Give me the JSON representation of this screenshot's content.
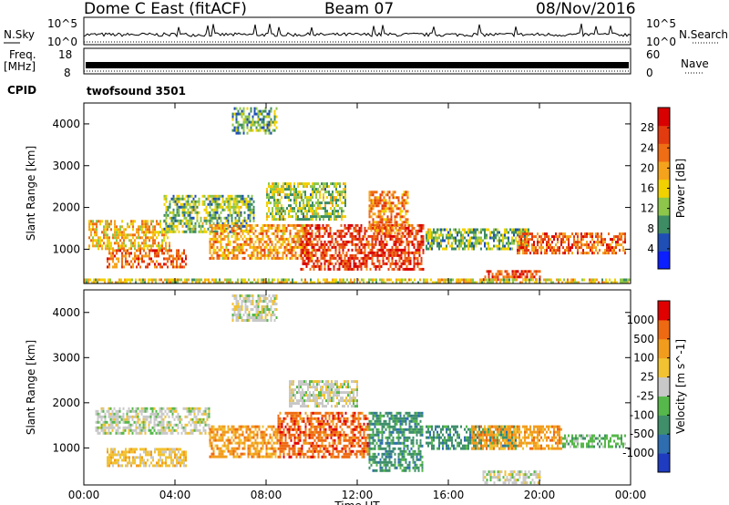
{
  "header": {
    "title": "Dome C East (fitACF)",
    "beam": "Beam 07",
    "date": "08/Nov/2016"
  },
  "strips": {
    "nsky_label": "N.Sky",
    "nsky_ticks": [
      "10^5",
      "10^0"
    ],
    "nsearch_label": "N.Search",
    "nsearch_ticks": [
      "10^5",
      "10^0"
    ],
    "freq_label": "Freq.",
    "freq_unit": "[MHz]",
    "freq_ticks": [
      "18",
      "8"
    ],
    "nave_label": "Nave",
    "nave_ticks": [
      "60",
      "0"
    ],
    "cpid_label": "CPID",
    "cpid_value": "twofsound 3501"
  },
  "chart_data": [
    {
      "type": "heatmap",
      "title": "",
      "xlabel": "Time UT",
      "ylabel": "Slant Range [km]",
      "xlim": [
        0,
        24
      ],
      "ylim": [
        180,
        4500
      ],
      "x_ticks": [
        "00:00",
        "04:00",
        "08:00",
        "12:00",
        "16:00",
        "20:00",
        "00:00"
      ],
      "y_ticks": [
        "1000",
        "2000",
        "3000",
        "4000"
      ],
      "colorbar_label": "Power [dB]",
      "colorbar_ticks": [
        "4",
        "8",
        "12",
        "16",
        "20",
        "24",
        "28"
      ],
      "colorbar_range": [
        0,
        32
      ],
      "colors": [
        "#0b1fff",
        "#1f4fb5",
        "#3d8c63",
        "#8dc64a",
        "#f1d100",
        "#f5a31d",
        "#ef6d14",
        "#e33b10",
        "#d80000"
      ],
      "regions": [
        {
          "t0": 0.2,
          "t1": 3.8,
          "r0": 1000,
          "r1": 1700,
          "value": 18
        },
        {
          "t0": 1.0,
          "t1": 4.5,
          "r0": 600,
          "r1": 1000,
          "value": 24
        },
        {
          "t0": 3.5,
          "t1": 7.5,
          "r0": 1400,
          "r1": 2300,
          "value": 12
        },
        {
          "t0": 5.5,
          "t1": 10.0,
          "r0": 800,
          "r1": 1600,
          "value": 20
        },
        {
          "t0": 8.0,
          "t1": 11.5,
          "r0": 1700,
          "r1": 2600,
          "value": 13
        },
        {
          "t0": 9.5,
          "t1": 14.9,
          "r0": 500,
          "r1": 1600,
          "value": 27
        },
        {
          "t0": 12.5,
          "t1": 14.2,
          "r0": 1400,
          "r1": 2400,
          "value": 22
        },
        {
          "t0": 15.0,
          "t1": 19.5,
          "r0": 1000,
          "r1": 1500,
          "value": 12
        },
        {
          "t0": 19.0,
          "t1": 23.8,
          "r0": 900,
          "r1": 1400,
          "value": 24
        },
        {
          "t0": 17.5,
          "t1": 20.0,
          "r0": 250,
          "r1": 500,
          "value": 26
        },
        {
          "t0": 6.5,
          "t1": 8.5,
          "r0": 3800,
          "r1": 4400,
          "value": 10
        },
        {
          "t0": 0.0,
          "t1": 24.0,
          "r0": 180,
          "r1": 300,
          "value": 16
        }
      ]
    },
    {
      "type": "heatmap",
      "title": "",
      "xlabel": "Time UT",
      "ylabel": "Slant Range [km]",
      "xlim": [
        0,
        24
      ],
      "ylim": [
        180,
        4500
      ],
      "x_ticks": [
        "00:00",
        "04:00",
        "08:00",
        "12:00",
        "16:00",
        "20:00",
        "00:00"
      ],
      "y_ticks": [
        "1000",
        "2000",
        "3000",
        "4000"
      ],
      "colorbar_label": "Velocity [m s^-1]",
      "colorbar_ticks": [
        "1000",
        "500",
        "100",
        "25",
        "-25",
        "-100",
        "-500",
        "-1000"
      ],
      "colors": [
        "#1f3bc0",
        "#2e6eb0",
        "#3e8f6a",
        "#56b84a",
        "#c8c8c8",
        "#f1c232",
        "#f29c1e",
        "#ee6a12",
        "#e00000"
      ],
      "regions": [
        {
          "t0": 0.5,
          "t1": 5.5,
          "r0": 1300,
          "r1": 1900,
          "level": 4
        },
        {
          "t0": 1.0,
          "t1": 4.5,
          "r0": 600,
          "r1": 1000,
          "level": 5
        },
        {
          "t0": 5.5,
          "t1": 8.5,
          "r0": 800,
          "r1": 1500,
          "level": 6
        },
        {
          "t0": 8.5,
          "t1": 12.5,
          "r0": 800,
          "r1": 1800,
          "level": 7
        },
        {
          "t0": 12.5,
          "t1": 14.9,
          "r0": 500,
          "r1": 1800,
          "level": 2
        },
        {
          "t0": 15.0,
          "t1": 19.0,
          "r0": 1000,
          "r1": 1500,
          "level": 2
        },
        {
          "t0": 17.0,
          "t1": 21.0,
          "r0": 1000,
          "r1": 1500,
          "level": 6
        },
        {
          "t0": 21.0,
          "t1": 23.8,
          "r0": 1000,
          "r1": 1300,
          "level": 3
        },
        {
          "t0": 9.0,
          "t1": 12.0,
          "r0": 1900,
          "r1": 2500,
          "level": 4
        },
        {
          "t0": 6.5,
          "t1": 8.5,
          "r0": 3800,
          "r1": 4400,
          "level": 4
        },
        {
          "t0": 17.5,
          "t1": 20.0,
          "r0": 250,
          "r1": 500,
          "level": 4
        }
      ]
    }
  ]
}
